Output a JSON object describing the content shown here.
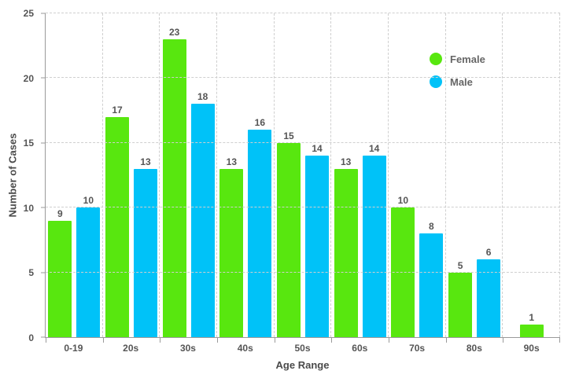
{
  "chart_data": {
    "type": "bar",
    "title": "",
    "xlabel": "Age Range",
    "ylabel": "Number of Cases",
    "categories": [
      "0-19",
      "20s",
      "30s",
      "40s",
      "50s",
      "60s",
      "70s",
      "80s",
      "90s"
    ],
    "series": [
      {
        "name": "Female",
        "color": "#58e70f",
        "values": [
          9,
          17,
          23,
          13,
          15,
          13,
          10,
          5,
          1
        ]
      },
      {
        "name": "Male",
        "color": "#00c2f8",
        "values": [
          10,
          13,
          18,
          16,
          14,
          14,
          8,
          6,
          null
        ]
      }
    ],
    "ylim": [
      0,
      25
    ],
    "yticks": [
      0,
      5,
      10,
      15,
      20,
      25
    ],
    "grid": "dashed-both-axes",
    "legend_position": "inside-upper-right",
    "bar_value_labels_shown": true
  },
  "colors": {
    "female_bar": "#58e70f",
    "male_bar": "#00c2f8",
    "axis_line": "#9a9a9a",
    "gridline": "#cfcfcf",
    "tick_text": "#555555",
    "axis_title_text": "#4a4a4a",
    "background": "#ffffff"
  }
}
